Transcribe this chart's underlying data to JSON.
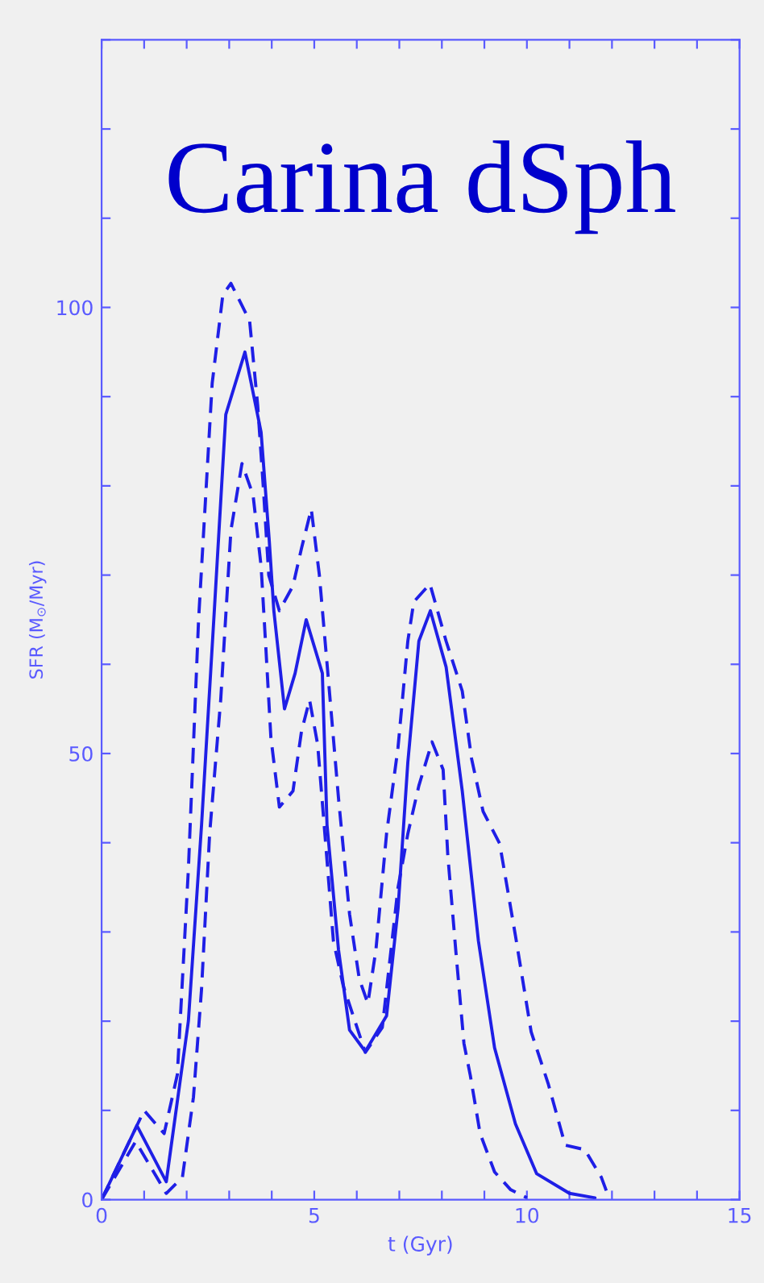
{
  "chart_data": {
    "type": "line",
    "title": "Carina dSph",
    "xlabel": "t (Gyr)",
    "ylabel": "SFR (M$_{⊙}$/Myr)",
    "xlim": [
      0,
      15
    ],
    "ylim": [
      0,
      130
    ],
    "xticks": [
      0,
      {
        "value": 1,
        "label": null
      },
      {
        "value": 2,
        "label": null
      },
      {
        "value": 3,
        "label": null
      },
      {
        "value": 4,
        "label": null
      },
      5,
      {
        "value": 6,
        "label": null
      },
      {
        "value": 7,
        "label": null
      },
      {
        "value": 8,
        "label": null
      },
      {
        "value": 9,
        "label": null
      },
      10,
      {
        "value": 11,
        "label": null
      },
      {
        "value": 12,
        "label": null
      },
      {
        "value": 13,
        "label": null
      },
      {
        "value": 14,
        "label": null
      },
      15
    ],
    "yticks": [
      0,
      {
        "value": 10,
        "label": null
      },
      {
        "value": 20,
        "label": null
      },
      {
        "value": 30,
        "label": null
      },
      {
        "value": 40,
        "label": null
      },
      50,
      {
        "value": 60,
        "label": null
      },
      {
        "value": 70,
        "label": null
      },
      {
        "value": 80,
        "label": null
      },
      {
        "value": 90,
        "label": null
      },
      100,
      {
        "value": 110,
        "label": null
      },
      {
        "value": 120,
        "label": null
      },
      {
        "value": 130,
        "label": null
      }
    ],
    "marker": "none",
    "series": [
      {
        "color": "#1f1fe6",
        "line_style": "solid",
        "x": [
          0,
          0.83,
          1.52,
          2.04,
          2.35,
          2.65,
          2.92,
          3.37,
          3.75,
          3.94,
          4.05,
          4.3,
          4.55,
          4.81,
          5.19,
          5.3,
          5.57,
          5.83,
          6.2,
          6.7,
          6.97,
          7.2,
          7.46,
          7.73,
          8.1,
          8.48,
          8.86,
          9.24,
          9.73,
          10.23,
          11.0,
          11.6
        ],
        "values": [
          0,
          8.3,
          2,
          20,
          42,
          66,
          88,
          95,
          86,
          74,
          66,
          55,
          59,
          65,
          59,
          42,
          28,
          19,
          16.6,
          20.6,
          32.6,
          49,
          62.6,
          66,
          59.7,
          45.8,
          29,
          17,
          8.5,
          2.9,
          0.7,
          0.2
        ]
      },
      {
        "color": "#1f1fe6",
        "line_style": "dashed",
        "x": [
          0,
          1.0,
          1.47,
          1.78,
          2.04,
          2.28,
          2.6,
          2.85,
          3.04,
          3.48,
          3.67,
          3.8,
          3.93,
          4.18,
          4.5,
          4.7,
          4.93,
          5.12,
          5.32,
          5.57,
          5.83,
          6.06,
          6.26,
          6.45,
          6.7,
          6.97,
          7.2,
          7.34,
          7.72,
          8.1,
          8.48,
          8.7,
          8.97,
          9.36,
          9.73,
          10.1,
          10.5,
          10.9,
          11.36,
          11.75,
          11.93
        ],
        "values": [
          0,
          10,
          7.4,
          14,
          37,
          65,
          91.5,
          101.4,
          102.7,
          98.5,
          89,
          80,
          70,
          66,
          68.8,
          73,
          77.4,
          70,
          59,
          45,
          32,
          24.7,
          22,
          28,
          41,
          50.7,
          62.6,
          67,
          69,
          62.6,
          57,
          49.4,
          43.5,
          39.9,
          29.6,
          18.8,
          13,
          6.1,
          5.6,
          2.5,
          0.2
        ]
      },
      {
        "color": "#1f1fe6",
        "line_style": "dashed",
        "x": [
          0,
          0.8,
          1.52,
          1.9,
          2.16,
          2.35,
          2.54,
          2.8,
          3.04,
          3.3,
          3.56,
          3.75,
          3.86,
          3.98,
          4.18,
          4.5,
          4.7,
          4.89,
          5.08,
          5.3,
          5.45,
          5.68,
          6.2,
          6.6,
          6.97,
          7.2,
          7.46,
          7.77,
          8.03,
          8.14,
          8.33,
          8.52,
          8.67,
          8.9,
          9.24,
          9.62,
          10.0
        ],
        "values": [
          0,
          6.5,
          0.7,
          2.5,
          11.5,
          23.6,
          41,
          56,
          75,
          82.5,
          79,
          71,
          62,
          51.8,
          44,
          45.8,
          52.5,
          56,
          51,
          38,
          29,
          24,
          16.5,
          19.3,
          35,
          41,
          46.4,
          51.3,
          48.2,
          38.6,
          27.8,
          17.5,
          13.9,
          7.4,
          3.1,
          1.1,
          0.2
        ]
      }
    ]
  }
}
